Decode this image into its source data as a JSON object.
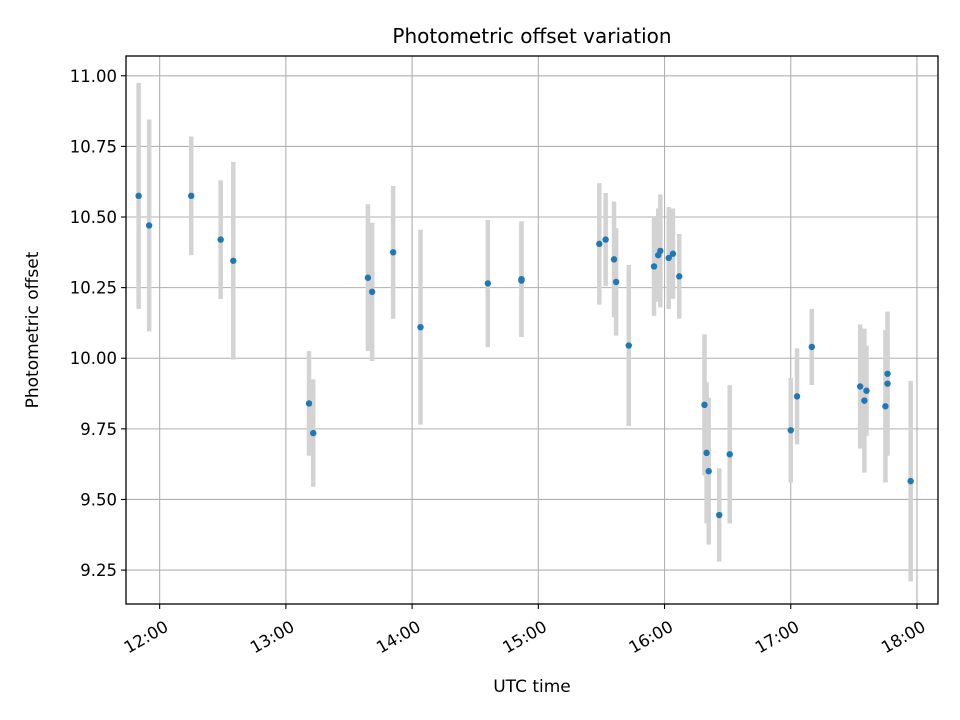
{
  "chart_data": {
    "type": "scatter",
    "title": "Photometric offset variation",
    "xlabel": "UTC time",
    "ylabel": "Photometric offset",
    "x_unit": "UTC time (HH:MM)",
    "xlim": [
      "11:44",
      "18:10"
    ],
    "ylim": [
      9.13,
      11.07
    ],
    "x_ticks": [
      "12:00",
      "13:00",
      "14:00",
      "15:00",
      "16:00",
      "17:00",
      "18:00"
    ],
    "y_ticks": [
      "9.25",
      "9.50",
      "9.75",
      "10.00",
      "10.25",
      "10.50",
      "10.75",
      "11.00"
    ],
    "grid": true,
    "marker_color": "#1f77b4",
    "errorbar_color": "#d3d3d3",
    "series": [
      {
        "points": [
          {
            "x": "11:50",
            "y": 10.575,
            "err": 0.4
          },
          {
            "x": "11:55",
            "y": 10.47,
            "err": 0.375
          },
          {
            "x": "12:15",
            "y": 10.575,
            "err": 0.21
          },
          {
            "x": "12:29",
            "y": 10.42,
            "err": 0.21
          },
          {
            "x": "12:35",
            "y": 10.345,
            "err": 0.35
          },
          {
            "x": "13:11",
            "y": 9.84,
            "err": 0.185
          },
          {
            "x": "13:13",
            "y": 9.735,
            "err": 0.19
          },
          {
            "x": "13:39",
            "y": 10.285,
            "err": 0.26
          },
          {
            "x": "13:41",
            "y": 10.235,
            "err": 0.245
          },
          {
            "x": "13:51",
            "y": 10.375,
            "err": 0.235
          },
          {
            "x": "14:04",
            "y": 10.11,
            "err": 0.345
          },
          {
            "x": "14:36",
            "y": 10.265,
            "err": 0.225
          },
          {
            "x": "14:52",
            "y": 10.28,
            "err": 0.205
          },
          {
            "x": "14:52",
            "y": 10.275,
            "err": 0.2
          },
          {
            "x": "15:29",
            "y": 10.405,
            "err": 0.215
          },
          {
            "x": "15:32",
            "y": 10.42,
            "err": 0.165
          },
          {
            "x": "15:36",
            "y": 10.35,
            "err": 0.205
          },
          {
            "x": "15:37",
            "y": 10.27,
            "err": 0.19
          },
          {
            "x": "15:43",
            "y": 10.045,
            "err": 0.285
          },
          {
            "x": "15:55",
            "y": 10.325,
            "err": 0.175
          },
          {
            "x": "15:57",
            "y": 10.365,
            "err": 0.165
          },
          {
            "x": "15:58",
            "y": 10.38,
            "err": 0.2
          },
          {
            "x": "16:02",
            "y": 10.355,
            "err": 0.18
          },
          {
            "x": "16:04",
            "y": 10.37,
            "err": 0.16
          },
          {
            "x": "16:07",
            "y": 10.29,
            "err": 0.15
          },
          {
            "x": "16:19",
            "y": 9.835,
            "err": 0.25
          },
          {
            "x": "16:20",
            "y": 9.665,
            "err": 0.25
          },
          {
            "x": "16:21",
            "y": 9.6,
            "err": 0.26
          },
          {
            "x": "16:26",
            "y": 9.445,
            "err": 0.165
          },
          {
            "x": "16:31",
            "y": 9.66,
            "err": 0.245
          },
          {
            "x": "17:00",
            "y": 9.745,
            "err": 0.185
          },
          {
            "x": "17:03",
            "y": 9.865,
            "err": 0.17
          },
          {
            "x": "17:10",
            "y": 10.04,
            "err": 0.135
          },
          {
            "x": "17:33",
            "y": 9.9,
            "err": 0.22
          },
          {
            "x": "17:35",
            "y": 9.85,
            "err": 0.255
          },
          {
            "x": "17:36",
            "y": 9.885,
            "err": 0.16
          },
          {
            "x": "17:45",
            "y": 9.83,
            "err": 0.27
          },
          {
            "x": "17:46",
            "y": 9.91,
            "err": 0.255
          },
          {
            "x": "17:46",
            "y": 9.945,
            "err": 0.155
          },
          {
            "x": "17:57",
            "y": 9.565,
            "err": 0.355
          }
        ]
      }
    ]
  }
}
